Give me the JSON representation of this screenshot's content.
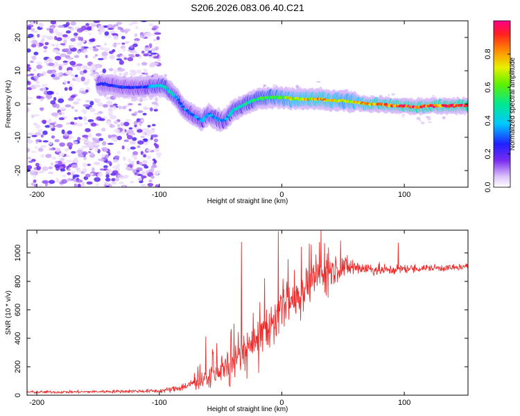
{
  "figure_title": "S206.2026.083.06.40.C21",
  "chart_data": [
    {
      "type": "heatmap",
      "title": "",
      "xlabel": "Height of straight line (km)",
      "ylabel": "Frequency (Hz)",
      "xlim": [
        -208,
        152
      ],
      "ylim": [
        -25,
        25
      ],
      "xticks": [
        -200,
        -100,
        0,
        100
      ],
      "xtick_labels": [
        "-200",
        "-100",
        "0",
        "100"
      ],
      "yticks": [
        -20,
        -10,
        0,
        10,
        20
      ],
      "ytick_labels": [
        "-20",
        "-10",
        "0",
        "10",
        "20"
      ],
      "ridge": {
        "x": [
          -145,
          -130,
          -115,
          -100,
          -95,
          -85,
          -80,
          -72,
          -65,
          -60,
          -55,
          -50,
          -45,
          -40,
          -30,
          -20,
          -10,
          0,
          10,
          20,
          30,
          40,
          50,
          60,
          70,
          80,
          90,
          100,
          110,
          120,
          130,
          140,
          150
        ],
        "y": [
          6,
          5,
          5,
          5.5,
          5,
          1.5,
          -1.5,
          -3.5,
          -5,
          -3,
          -4,
          -5,
          -4.5,
          -2,
          0,
          1.5,
          2,
          2,
          1.5,
          1.5,
          1.5,
          1,
          1,
          0.5,
          0,
          0,
          -0.5,
          -0.5,
          -1,
          -0.5,
          -0.5,
          -0.5,
          -0.5
        ],
        "amplitude": [
          0.28,
          0.28,
          0.3,
          0.45,
          0.5,
          0.38,
          0.35,
          0.33,
          0.4,
          0.38,
          0.42,
          0.36,
          0.4,
          0.45,
          0.5,
          0.55,
          0.6,
          0.68,
          0.75,
          0.8,
          0.85,
          0.82,
          0.7,
          0.75,
          0.88,
          0.9,
          0.92,
          0.95,
          0.95,
          0.95,
          0.97,
          0.97,
          0.97
        ]
      },
      "noise_region_x": [
        -208,
        -100
      ],
      "colorbar": {
        "label": "Normalized spectral amplitude",
        "range": [
          0,
          1
        ],
        "ticks": [
          0,
          0.2,
          0.4,
          0.6,
          0.8
        ],
        "tick_labels": [
          "0.0",
          "0.2",
          "0.4",
          "0.6",
          "0.8"
        ],
        "colors": [
          "#ffffff",
          "#c9a8f5",
          "#7a2cf0",
          "#3a00ff",
          "#0050ff",
          "#00d4ff",
          "#00f07a",
          "#7cf000",
          "#f5f000",
          "#ff8000",
          "#ff1a1a",
          "#ff0080"
        ]
      }
    },
    {
      "type": "line",
      "title": "",
      "xlabel": "Height of straight line (km)",
      "ylabel": "SNR (10 * v/v)",
      "xlim": [
        -208,
        152
      ],
      "ylim": [
        0,
        1160
      ],
      "xticks": [
        -200,
        -100,
        0,
        100
      ],
      "xtick_labels": [
        "-200",
        "-100",
        "0",
        "100"
      ],
      "yticks": [
        0,
        200,
        400,
        600,
        800,
        1000
      ],
      "ytick_labels": [
        "0",
        "200",
        "400",
        "600",
        "800",
        "1000"
      ],
      "series": [
        {
          "name": "SNR",
          "color": "#ee2a2a",
          "envelope_x": [
            -208,
            -180,
            -150,
            -120,
            -100,
            -90,
            -80,
            -70,
            -60,
            -50,
            -40,
            -30,
            -20,
            -10,
            0,
            10,
            20,
            30,
            40,
            50,
            60,
            70,
            80,
            90,
            100,
            110,
            120,
            130,
            140,
            150
          ],
          "envelope_y": [
            22,
            22,
            25,
            28,
            30,
            40,
            60,
            90,
            130,
            180,
            240,
            320,
            410,
            500,
            580,
            680,
            770,
            840,
            880,
            900,
            900,
            890,
            880,
            880,
            890,
            890,
            895,
            895,
            895,
            900
          ],
          "spread_y": [
            10,
            10,
            10,
            12,
            14,
            20,
            30,
            45,
            70,
            90,
            110,
            140,
            150,
            150,
            150,
            140,
            130,
            120,
            100,
            80,
            60,
            50,
            40,
            35,
            30,
            28,
            25,
            25,
            25,
            25
          ],
          "spikes": [
            {
              "x": -62,
              "y": 410
            },
            {
              "x": -33,
              "y": 1075
            },
            {
              "x": -3,
              "y": 1150
            },
            {
              "x": 32,
              "y": 1160
            },
            {
              "x": 48,
              "y": 1085
            },
            {
              "x": 95,
              "y": 1070
            }
          ]
        }
      ]
    }
  ]
}
